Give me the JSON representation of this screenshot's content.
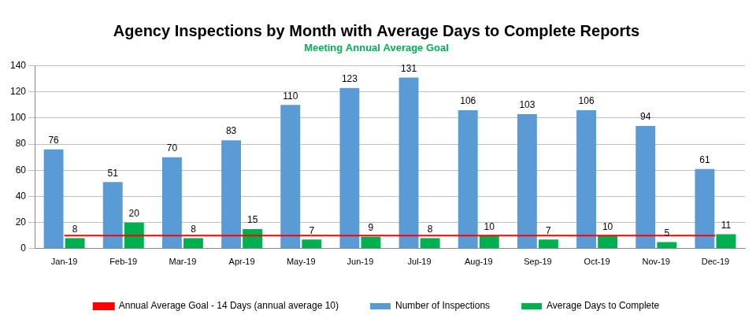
{
  "chart_data": {
    "type": "bar",
    "title": "Agency Inspections by Month with Average Days to Complete Reports",
    "subtitle": "Meeting Annual Average Goal",
    "categories": [
      "Jan-19",
      "Feb-19",
      "Mar-19",
      "Apr-19",
      "May-19",
      "Jun-19",
      "Jul-19",
      "Aug-19",
      "Sep-19",
      "Oct-19",
      "Nov-19",
      "Dec-19"
    ],
    "series": [
      {
        "name": "Number of Inspections",
        "color": "#5b9bd5",
        "values": [
          76,
          51,
          70,
          83,
          110,
          123,
          131,
          106,
          103,
          106,
          94,
          61
        ]
      },
      {
        "name": "Average Days to Complete",
        "color": "#00b050",
        "values": [
          8,
          20,
          8,
          15,
          7,
          9,
          8,
          10,
          7,
          10,
          5,
          11
        ]
      },
      {
        "name": "Annual Average Goal - 14 Days (annual average 10)",
        "type": "line",
        "color": "#ff0000",
        "marker": "none",
        "line_style": "solid",
        "values": [
          10,
          10,
          10,
          10,
          10,
          10,
          10,
          10,
          10,
          10,
          10,
          10
        ]
      }
    ],
    "ylim": [
      0,
      140
    ],
    "yticks": [
      0,
      20,
      40,
      60,
      80,
      100,
      120,
      140
    ],
    "grid": true,
    "legend": "bottom",
    "data_labels": true
  }
}
